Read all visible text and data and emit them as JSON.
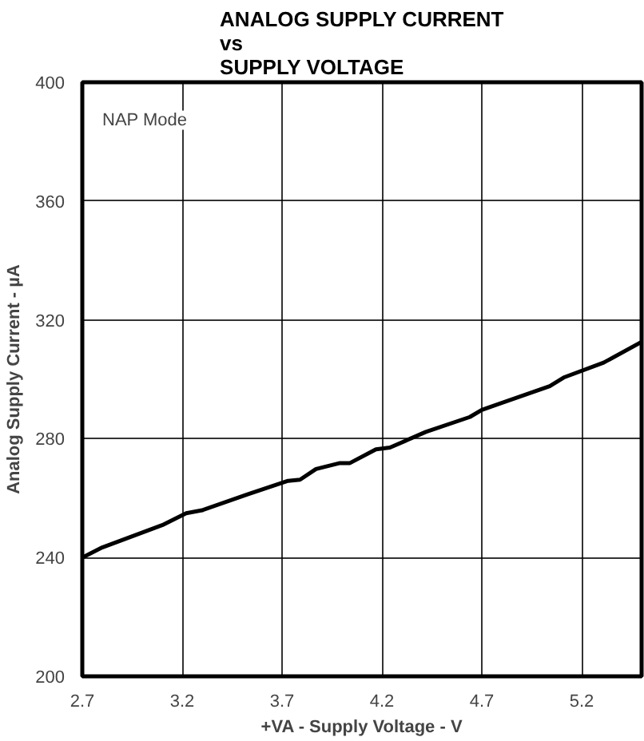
{
  "chart_data": {
    "type": "line",
    "title": "ANALOG SUPPLY CURRENT\nvs\nSUPPLY VOLTAGE",
    "xlabel": "+VA - Supply Voltage - V",
    "ylabel": "Analog Supply Current - µA",
    "annotations": [
      "NAP Mode"
    ],
    "x": [
      2.7,
      2.8,
      3.1,
      3.22,
      3.3,
      3.53,
      3.73,
      3.79,
      3.87,
      3.99,
      4.04,
      4.17,
      4.24,
      4.42,
      4.64,
      4.7,
      5.04,
      5.11,
      5.31,
      5.5
    ],
    "series": [
      {
        "color": "#000000",
        "values": [
          240,
          243.4,
          250.9,
          254.9,
          255.9,
          261.3,
          265.8,
          266.2,
          269.8,
          271.8,
          271.8,
          276.4,
          277,
          282.3,
          287.3,
          289.7,
          297.7,
          300.6,
          305.6,
          312.6
        ]
      }
    ],
    "xlim": [
      2.7,
      5.5
    ],
    "ylim": [
      200,
      400
    ],
    "xticks": [
      2.7,
      3.2,
      3.7,
      4.2,
      4.7,
      5.2
    ],
    "yticks": [
      200,
      240,
      280,
      320,
      360,
      400
    ],
    "grid": true,
    "marker": "none",
    "line_style": "solid"
  }
}
